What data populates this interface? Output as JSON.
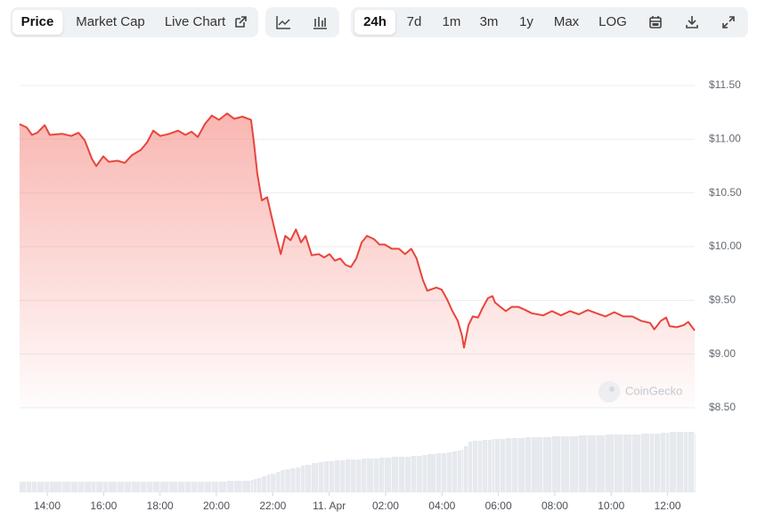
{
  "toolbar": {
    "views": [
      "Price",
      "Market Cap",
      "Live Chart"
    ],
    "ranges": [
      "24h",
      "7d",
      "1m",
      "3m",
      "1y",
      "Max",
      "LOG"
    ]
  },
  "watermark": "CoinGecko",
  "chart_data": {
    "type": "line",
    "color": "#e8453c",
    "x": [
      13.02,
      13.27,
      13.46,
      13.65,
      13.91,
      14.09,
      14.54,
      14.85,
      15.11,
      15.33,
      15.58,
      15.74,
      15.99,
      16.18,
      16.49,
      16.75,
      17.0,
      17.32,
      17.54,
      17.76,
      18.01,
      18.33,
      18.64,
      18.9,
      19.12,
      19.34,
      19.59,
      19.84,
      20.09,
      20.38,
      20.63,
      20.92,
      21.23,
      21.33,
      21.45,
      21.61,
      21.8,
      21.93,
      22.12,
      22.28,
      22.44,
      22.63,
      22.82,
      23.0,
      23.16,
      23.38,
      23.63,
      23.82,
      24.01,
      24.2,
      24.39,
      24.58,
      24.77,
      24.96,
      25.15,
      25.34,
      25.59,
      25.78,
      25.97,
      26.22,
      26.47,
      26.69,
      26.91,
      27.1,
      27.32,
      27.48,
      27.8,
      27.99,
      28.18,
      28.37,
      28.56,
      28.71,
      28.78,
      28.94,
      29.09,
      29.28,
      29.44,
      29.63,
      29.79,
      29.88,
      30.07,
      30.26,
      30.48,
      30.7,
      30.96,
      31.18,
      31.59,
      31.9,
      32.22,
      32.54,
      32.85,
      33.17,
      33.48,
      33.8,
      34.11,
      34.43,
      34.75,
      35.06,
      35.38,
      35.53,
      35.76,
      35.95,
      36.07,
      36.32,
      36.58,
      36.73,
      36.96
    ],
    "values": [
      11.14,
      11.11,
      11.04,
      11.06,
      11.13,
      11.04,
      11.05,
      11.03,
      11.06,
      10.99,
      10.82,
      10.75,
      10.84,
      10.79,
      10.8,
      10.78,
      10.85,
      10.9,
      10.97,
      11.08,
      11.03,
      11.05,
      11.08,
      11.04,
      11.07,
      11.02,
      11.14,
      11.22,
      11.18,
      11.24,
      11.19,
      11.21,
      11.18,
      10.97,
      10.68,
      10.43,
      10.46,
      10.31,
      10.1,
      9.93,
      10.1,
      10.06,
      10.16,
      10.04,
      10.1,
      9.92,
      9.93,
      9.9,
      9.93,
      9.87,
      9.89,
      9.83,
      9.81,
      9.89,
      10.04,
      10.1,
      10.07,
      10.02,
      10.02,
      9.98,
      9.98,
      9.93,
      9.98,
      9.89,
      9.69,
      9.59,
      9.62,
      9.6,
      9.51,
      9.4,
      9.31,
      9.17,
      9.06,
      9.27,
      9.35,
      9.34,
      9.43,
      9.52,
      9.54,
      9.48,
      9.44,
      9.4,
      9.44,
      9.44,
      9.41,
      9.38,
      9.36,
      9.4,
      9.36,
      9.4,
      9.37,
      9.41,
      9.38,
      9.35,
      9.39,
      9.35,
      9.35,
      9.31,
      9.29,
      9.23,
      9.31,
      9.34,
      9.26,
      9.25,
      9.27,
      9.3,
      9.22
    ],
    "volume": [
      12,
      12,
      12,
      12,
      12,
      12,
      12,
      12,
      12,
      12,
      12,
      12,
      12,
      12,
      12,
      12,
      12,
      12,
      12,
      12,
      12,
      12,
      12,
      12,
      12,
      12,
      12,
      12,
      12,
      13,
      13,
      13,
      14,
      15,
      16,
      18,
      20,
      21,
      23,
      25,
      26,
      27,
      28,
      30,
      31,
      33,
      34,
      35,
      35,
      36,
      36,
      37,
      37,
      37,
      38,
      38,
      38,
      39,
      39,
      40,
      40,
      40,
      41,
      41,
      42,
      43,
      44,
      44,
      45,
      46,
      47,
      48,
      52,
      57,
      58,
      58,
      59,
      59,
      60,
      60,
      60,
      61,
      61,
      61,
      62,
      62,
      62,
      63,
      63,
      63,
      64,
      64,
      64,
      65,
      65,
      65,
      65,
      66,
      66,
      66,
      67,
      67,
      68,
      68,
      68,
      68,
      66
    ],
    "volume_color": "#e6e9ee",
    "xlim": [
      13.02,
      36.96
    ],
    "xticks": [
      {
        "value": 14,
        "label": "14:00"
      },
      {
        "value": 16,
        "label": "16:00"
      },
      {
        "value": 18,
        "label": "18:00"
      },
      {
        "value": 20,
        "label": "20:00"
      },
      {
        "value": 22,
        "label": "22:00"
      },
      {
        "value": 24,
        "label": "11. Apr"
      },
      {
        "value": 26,
        "label": "02:00"
      },
      {
        "value": 28,
        "label": "04:00"
      },
      {
        "value": 30,
        "label": "06:00"
      },
      {
        "value": 32,
        "label": "08:00"
      },
      {
        "value": 34,
        "label": "10:00"
      },
      {
        "value": 36,
        "label": "12:00"
      }
    ],
    "ylim": [
      8.5,
      11.5
    ],
    "yticks": [
      {
        "value": 8.5,
        "label": "$8.50"
      },
      {
        "value": 9.0,
        "label": "$9.00"
      },
      {
        "value": 9.5,
        "label": "$9.50"
      },
      {
        "value": 10.0,
        "label": "$10.00"
      },
      {
        "value": 10.5,
        "label": "$10.50"
      },
      {
        "value": 11.0,
        "label": "$11.00"
      },
      {
        "value": 11.5,
        "label": "$11.50"
      }
    ],
    "grid": true
  }
}
